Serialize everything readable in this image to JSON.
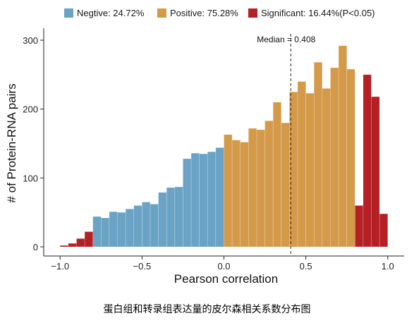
{
  "caption": "蛋白组和转录组表达量的皮尔森相关系数分布图",
  "chart_data": {
    "type": "bar",
    "xlabel": "Pearson correlation",
    "ylabel": "# of Protein-RNA pairs",
    "xlim": [
      -1.1,
      1.1
    ],
    "ylim": [
      0,
      300
    ],
    "xticks": [
      -1.0,
      -0.5,
      0.0,
      0.5,
      1.0
    ],
    "xtick_labels": [
      "−1.0",
      "−0.5",
      "0.0",
      "0.5",
      "1.0"
    ],
    "yticks": [
      0,
      100,
      200,
      300
    ],
    "ytick_labels": [
      "0",
      "100",
      "200",
      "300"
    ],
    "grid": false,
    "legend_position": "top",
    "bin_width": 0.05,
    "series": [
      {
        "name": "Negtive: 24.72%",
        "color": "#6aa3c6",
        "x": [
          -0.775,
          -0.725,
          -0.675,
          -0.625,
          -0.575,
          -0.525,
          -0.475,
          -0.425,
          -0.375,
          -0.325,
          -0.275,
          -0.225,
          -0.175,
          -0.125,
          -0.075,
          -0.025
        ],
        "values": [
          44,
          42,
          51,
          50,
          55,
          60,
          65,
          62,
          79,
          86,
          87,
          128,
          136,
          135,
          138,
          144
        ]
      },
      {
        "name": "Positive: 75.28%",
        "color": "#d49a4a",
        "x": [
          0.025,
          0.075,
          0.125,
          0.175,
          0.225,
          0.275,
          0.325,
          0.375,
          0.425,
          0.475,
          0.525,
          0.575,
          0.625,
          0.675,
          0.725,
          0.775
        ],
        "values": [
          163,
          155,
          152,
          172,
          170,
          183,
          210,
          180,
          225,
          240,
          223,
          268,
          230,
          260,
          292,
          258
        ]
      },
      {
        "name": "Significant: 16.44%(P<0.05)",
        "color": "#b52025",
        "x": [
          -0.975,
          -0.925,
          -0.875,
          -0.825,
          0.825,
          0.875,
          0.925,
          0.975
        ],
        "values": [
          2,
          5,
          12,
          22,
          60,
          250,
          218,
          48
        ]
      }
    ],
    "annotations": [
      {
        "text": "Median = 0.408",
        "x": 0.408,
        "style": "dashed vertical line"
      }
    ]
  }
}
